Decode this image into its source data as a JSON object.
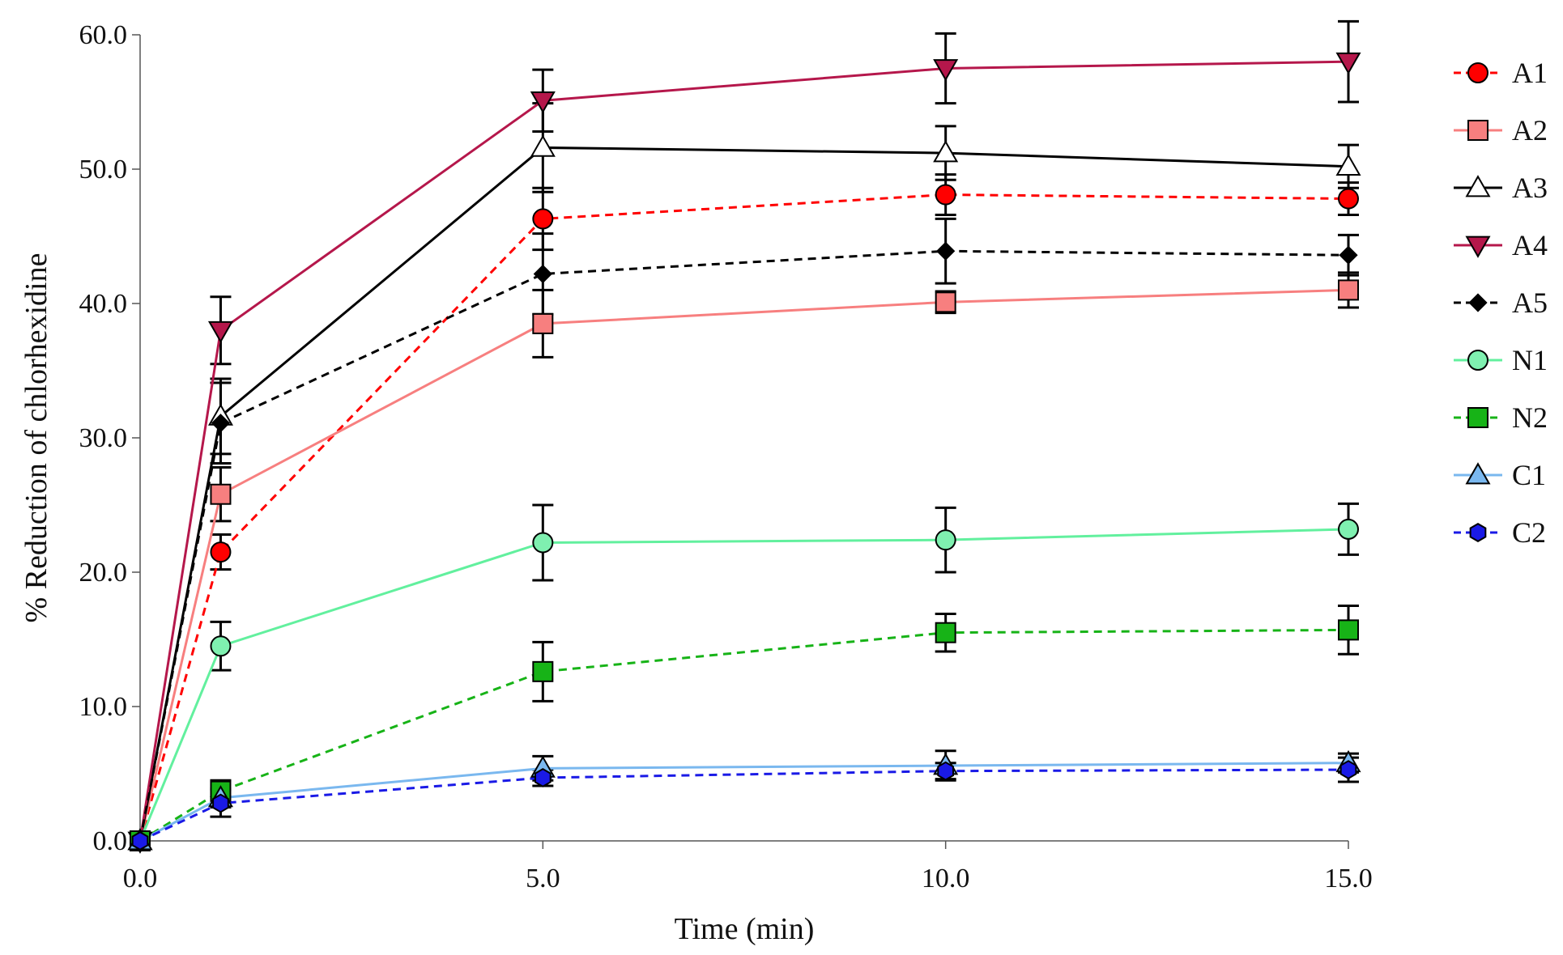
{
  "chart_data": {
    "type": "line",
    "title": "",
    "xlabel": "Time (min)",
    "ylabel": "% Reduction of chlorhexidine",
    "xlim": [
      0,
      15
    ],
    "ylim": [
      0,
      60
    ],
    "x_ticks": [
      "0.0",
      "5.0",
      "10.0",
      "15.0"
    ],
    "y_ticks": [
      "0.0",
      "10.0",
      "20.0",
      "30.0",
      "40.0",
      "50.0",
      "60.0"
    ],
    "x_tick_values": [
      0,
      5,
      10,
      15
    ],
    "y_tick_values": [
      0,
      10,
      20,
      30,
      40,
      50,
      60
    ],
    "grid": false,
    "legend": "right",
    "x": [
      0,
      1,
      5,
      10,
      15
    ],
    "series": [
      {
        "name": "A1",
        "values": [
          0,
          21.5,
          46.3,
          48.1,
          47.8
        ],
        "errors": [
          0,
          1.3,
          2.3,
          1.5,
          1.2
        ],
        "color": "#ff0000",
        "marker": "circle",
        "marker_fill": "#ff0000",
        "dash": true
      },
      {
        "name": "A2",
        "values": [
          0,
          25.8,
          38.5,
          40.1,
          41.0
        ],
        "errors": [
          0,
          2.0,
          2.5,
          0.8,
          1.3
        ],
        "color": "#f77f7f",
        "marker": "square",
        "marker_fill": "#f77f7f",
        "dash": false
      },
      {
        "name": "A3",
        "values": [
          0,
          31.6,
          51.6,
          51.2,
          50.2
        ],
        "errors": [
          0,
          2.8,
          3.3,
          2.0,
          1.6
        ],
        "color": "#000000",
        "marker": "triangle-up",
        "marker_fill": "#ffffff",
        "dash": false
      },
      {
        "name": "A4",
        "values": [
          0,
          38.0,
          55.1,
          57.5,
          58.0
        ],
        "errors": [
          0,
          2.5,
          2.3,
          2.6,
          3.0
        ],
        "color": "#b5174b",
        "marker": "triangle-down",
        "marker_fill": "#b5174b",
        "dash": false
      },
      {
        "name": "A5",
        "values": [
          0,
          31.1,
          42.2,
          43.9,
          43.6
        ],
        "errors": [
          0,
          3.0,
          3.0,
          2.4,
          1.5
        ],
        "color": "#000000",
        "marker": "diamond",
        "marker_fill": "#000000",
        "dash": true
      },
      {
        "name": "N1",
        "values": [
          0,
          14.5,
          22.2,
          22.4,
          23.2
        ],
        "errors": [
          0,
          1.8,
          2.8,
          2.4,
          1.9
        ],
        "color": "#62f09e",
        "marker": "circle",
        "marker_fill": "#7ff0b0",
        "dash": false
      },
      {
        "name": "N2",
        "values": [
          0,
          3.7,
          12.6,
          15.5,
          15.7
        ],
        "errors": [
          0,
          0.8,
          2.2,
          1.4,
          1.8
        ],
        "color": "#17b317",
        "marker": "square",
        "marker_fill": "#17b317",
        "dash": true
      },
      {
        "name": "C1",
        "values": [
          0,
          3.2,
          5.4,
          5.6,
          5.8
        ],
        "errors": [
          0,
          0.7,
          0.9,
          1.1,
          0.7
        ],
        "color": "#7ab8ef",
        "marker": "triangle-up",
        "marker_fill": "#7ab8ef",
        "dash": false
      },
      {
        "name": "C2",
        "values": [
          0,
          2.8,
          4.7,
          5.2,
          5.3
        ],
        "errors": [
          0,
          1.0,
          0.6,
          0.6,
          0.9
        ],
        "color": "#1a1ae6",
        "marker": "hexagon",
        "marker_fill": "#1a1ae6",
        "dash": true
      }
    ]
  }
}
